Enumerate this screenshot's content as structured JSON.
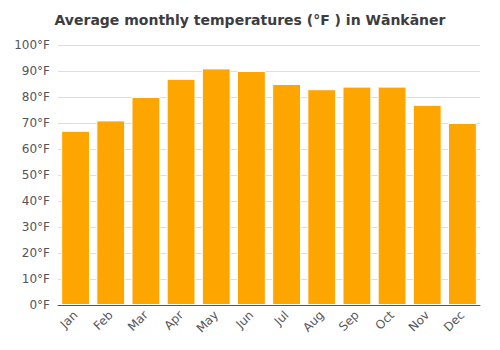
{
  "chart_data": {
    "type": "bar",
    "title": "Average monthly temperatures (°F ) in Wānkāner",
    "categories": [
      "Jan",
      "Feb",
      "Mar",
      "Apr",
      "May",
      "Jun",
      "Jul",
      "Aug",
      "Sep",
      "Oct",
      "Nov",
      "Dec"
    ],
    "values": [
      67,
      71,
      80,
      87,
      91,
      90,
      85,
      83,
      84,
      84,
      77,
      70
    ],
    "color": "#FFA500",
    "ylim": [
      0,
      100
    ],
    "yticks": [
      {
        "value": 0,
        "label": "0°F"
      },
      {
        "value": 10,
        "label": "10°F"
      },
      {
        "value": 20,
        "label": "20°F"
      },
      {
        "value": 30,
        "label": "30°F"
      },
      {
        "value": 40,
        "label": "40°F"
      },
      {
        "value": 50,
        "label": "50°F"
      },
      {
        "value": 60,
        "label": "60°F"
      },
      {
        "value": 70,
        "label": "70°F"
      },
      {
        "value": 80,
        "label": "80°F"
      },
      {
        "value": 90,
        "label": "90°F"
      },
      {
        "value": 100,
        "label": "100°F"
      }
    ],
    "grid": true
  }
}
